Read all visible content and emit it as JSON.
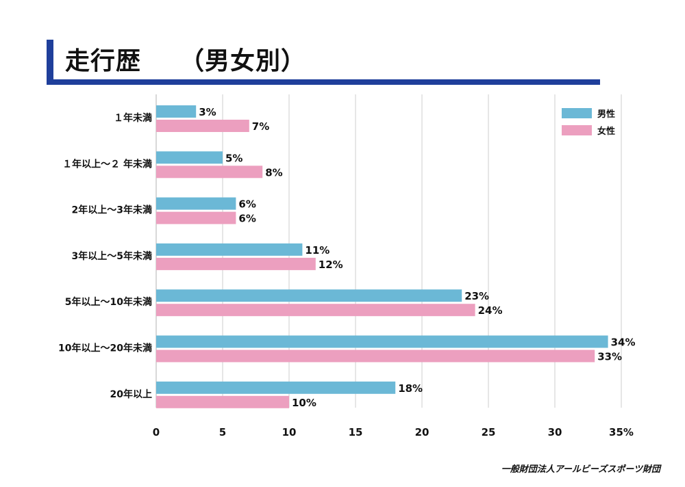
{
  "title": "走行歴　　（男女別）",
  "footer": "一般財団法人アールビーズスポーツ財団",
  "colors": {
    "male": "#6bb8d6",
    "female": "#ec9fbf",
    "title_accent": "#1f3f9b"
  },
  "chart_data": {
    "type": "bar",
    "orientation": "horizontal",
    "title": "走行歴　　（男女別）",
    "categories": [
      "１年未満",
      "１年以上～２ 年未満",
      "2年以上～3年未満",
      "3年以上～5年未満",
      "5年以上～10年未満",
      "10年以上～20年未満",
      "20年以上"
    ],
    "series": [
      {
        "name": "男性",
        "values": [
          3,
          5,
          6,
          11,
          23,
          34,
          18
        ],
        "labels": [
          "3%",
          "5%",
          "6%",
          "11%",
          "23%",
          "34%",
          "18%"
        ],
        "color": "#6bb8d6"
      },
      {
        "name": "女性",
        "values": [
          7,
          8,
          6,
          12,
          24,
          33,
          10
        ],
        "labels": [
          "7%",
          "8%",
          "6%",
          "12%",
          "24%",
          "33%",
          "10%"
        ],
        "color": "#ec9fbf"
      }
    ],
    "xticks": [
      0,
      5,
      10,
      15,
      20,
      25,
      30,
      35
    ],
    "xtick_labels": [
      "0",
      "5",
      "10",
      "15",
      "20",
      "25",
      "30",
      "35%"
    ],
    "xlim": [
      0,
      35
    ],
    "grid": true,
    "legend": "top-right"
  }
}
